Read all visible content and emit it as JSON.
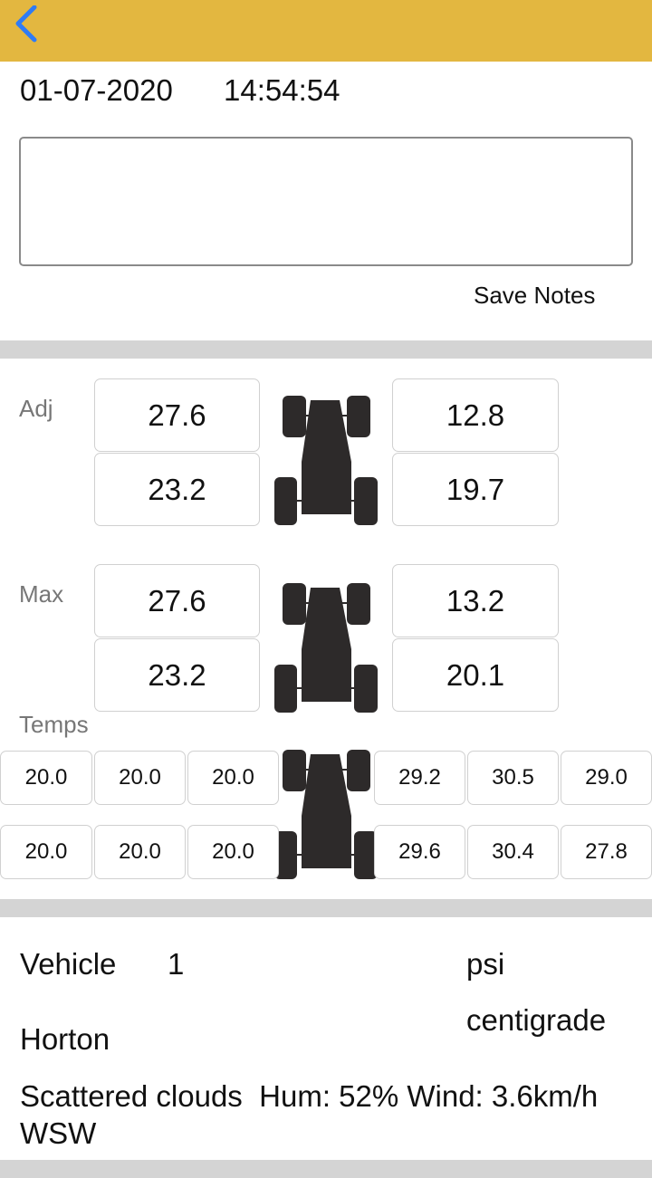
{
  "header": {
    "back_icon": "chevron-left-icon",
    "color": "#E3B740",
    "icon_color": "#2F7BF5"
  },
  "session": {
    "date": "01-07-2020",
    "time": "14:54:54"
  },
  "notes": {
    "value": "",
    "save_label": "Save Notes"
  },
  "adj": {
    "label": "Adj",
    "front_left": "27.6",
    "front_right": "12.8",
    "rear_left": "23.2",
    "rear_right": "19.7"
  },
  "max": {
    "label": "Max",
    "front_left": "27.6",
    "front_right": "13.2",
    "rear_left": "23.2",
    "rear_right": "20.1"
  },
  "temps": {
    "label": "Temps",
    "front_left": [
      "20.0",
      "20.0",
      "20.0"
    ],
    "front_right": [
      "29.2",
      "30.5",
      "29.0"
    ],
    "rear_left": [
      "20.0",
      "20.0",
      "20.0"
    ],
    "rear_right": [
      "29.6",
      "30.4",
      "27.8"
    ]
  },
  "info": {
    "vehicle_label": "Vehicle",
    "vehicle_value": "1",
    "pressure_unit": "psi",
    "temp_unit": "centigrade",
    "track": "Horton",
    "weather": "Scattered clouds  Hum: 52% Wind: 3.6km/h WSW"
  }
}
